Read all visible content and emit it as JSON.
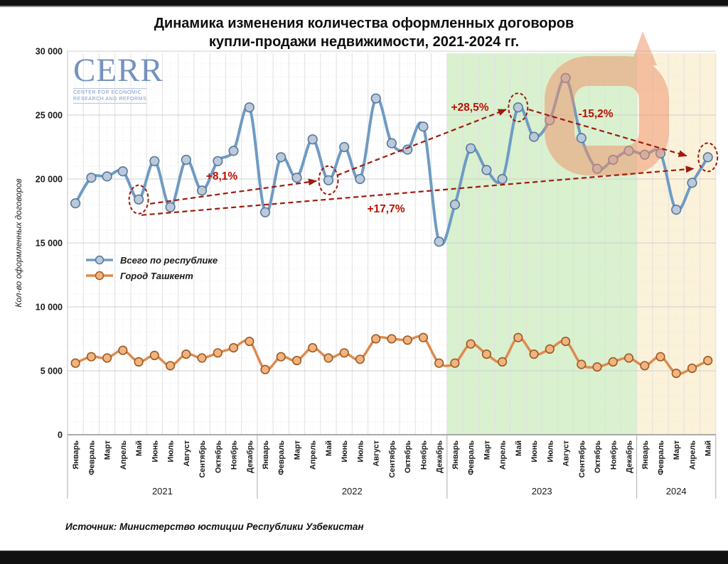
{
  "title": {
    "line1": "Динамика изменения количества оформленных договоров",
    "line2": "купли-продажи недвижимости, 2021-2024 гг."
  },
  "logo": {
    "name": "CERR",
    "subtitle1": "CENTER FOR ECONOMIC",
    "subtitle2": "RESEARCH AND REFORMS",
    "color": "#7492c0"
  },
  "source": "Источник: Министерство юстиции Республики Узбекистан",
  "chart_data": {
    "type": "line",
    "title": "Динамика изменения количества оформленных договоров купли-продажи недвижимости, 2021-2024 гг.",
    "ylabel": "Кол-во оформленных договоров",
    "ylim": [
      0,
      30000
    ],
    "ytick_step": 5000,
    "ytick_labels": [
      "0",
      "5 000",
      "10 000",
      "15 000",
      "20 000",
      "25 000",
      "30 000"
    ],
    "grid": "on",
    "legend_position": "middle-left",
    "month_names": [
      "Январь",
      "Февраль",
      "Март",
      "Апрель",
      "Май",
      "Июнь",
      "Июль",
      "Август",
      "Сентябрь",
      "Октябрь",
      "Ноябрь",
      "Декабрь"
    ],
    "year_groups": [
      {
        "year": "2021",
        "months": 12
      },
      {
        "year": "2022",
        "months": 12
      },
      {
        "year": "2023",
        "months": 12
      },
      {
        "year": "2024",
        "months": 5
      }
    ],
    "series": [
      {
        "name": "Всего по республике",
        "line_color": "#6f9bc4",
        "marker_fill": "#bcc9d9",
        "marker_stroke": "#54779e",
        "values": [
          18100,
          20100,
          20200,
          20600,
          18400,
          21400,
          17800,
          21500,
          19100,
          21400,
          22200,
          25600,
          17400,
          21700,
          20100,
          23100,
          19900,
          22500,
          20000,
          26300,
          22800,
          22300,
          24100,
          15100,
          18000,
          22400,
          20700,
          20000,
          25600,
          23300,
          24600,
          27900,
          23200,
          20800,
          21500,
          22200,
          21900,
          22000,
          17600,
          19700,
          21700
        ]
      },
      {
        "name": "Город Ташкент",
        "line_color": "#dd8a4e",
        "marker_fill": "#f3b381",
        "marker_stroke": "#9a5c22",
        "values": [
          5600,
          6100,
          6000,
          6600,
          5700,
          6200,
          5400,
          6300,
          6000,
          6400,
          6800,
          7300,
          5100,
          6100,
          5800,
          6800,
          6000,
          6400,
          5900,
          7500,
          7500,
          7400,
          7600,
          5600,
          5600,
          7100,
          6300,
          5700,
          7600,
          6300,
          6700,
          7300,
          5500,
          5300,
          5700,
          6000,
          5400,
          6100,
          4800,
          5200,
          5800
        ]
      }
    ],
    "bands": [
      {
        "label": "highlight-2023",
        "start_month_index": 24,
        "end_month_index": 36,
        "color": "#d9f1ce"
      },
      {
        "label": "highlight-2024",
        "start_month_index": 36,
        "end_month_index": 41,
        "color": "#fcf2da"
      }
    ],
    "annotations": {
      "line_color": "#9e1a0c",
      "label_color": "#bc1005",
      "circled_month_indices": [
        4,
        16,
        28,
        40
      ],
      "trend_lines": [
        {
          "from": 4,
          "to": 16,
          "label": "+8,1%",
          "label_x": 312,
          "label_y": 253
        },
        {
          "from": 4,
          "to": 40,
          "label": "+17,7%",
          "label_x": 543,
          "label_y": 299
        },
        {
          "from": 16,
          "to": 28,
          "label": "+28,5%",
          "label_x": 661,
          "label_y": 156
        },
        {
          "from": 28,
          "to": 40,
          "label": "-15,2%",
          "label_x": 838,
          "label_y": 165
        }
      ]
    },
    "highlight_ring": {
      "color": "#ef8f66",
      "opacity": 0.5
    }
  }
}
